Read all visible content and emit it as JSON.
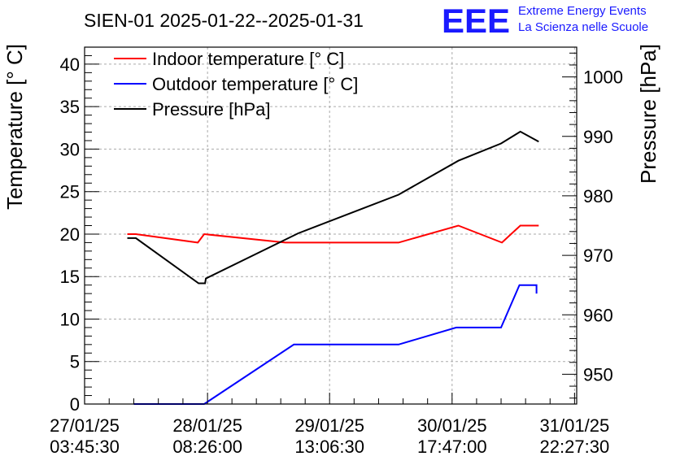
{
  "chart_data": {
    "type": "line",
    "title": "SIEN-01 2025-01-22--2025-01-31",
    "logo": {
      "mark": "EEE",
      "line1": "Extreme Energy Events",
      "line2": "La Scienza nelle Scuole",
      "color": "#1a1aff"
    },
    "y_left": {
      "label": "Temperature [° C]",
      "range": [
        0,
        42
      ],
      "ticks": [
        0,
        5,
        10,
        15,
        20,
        25,
        30,
        35,
        40
      ]
    },
    "y_right": {
      "label": "Pressure [hPa]",
      "range": [
        945,
        1005
      ],
      "ticks": [
        950,
        960,
        970,
        980,
        990,
        1000
      ]
    },
    "x_axis": {
      "unit": "hours from 27/01/25 03:45:30",
      "range": [
        0,
        115.2
      ],
      "ticks": [
        {
          "t": 0,
          "date": "27/01/25",
          "time": "03:45:30"
        },
        {
          "t": 28.78,
          "date": "28/01/25",
          "time": "08:26:00"
        },
        {
          "t": 57.35,
          "date": "29/01/25",
          "time": "13:06:30"
        },
        {
          "t": 86.03,
          "date": "30/01/25",
          "time": "17:47:00"
        },
        {
          "t": 114.7,
          "date": "31/01/25",
          "time": "22:27:30"
        }
      ]
    },
    "legend": {
      "position": "top-left",
      "entries": [
        "Indoor temperature [° C]",
        "Outdoor temperature [° C]",
        "Pressure [hPa]"
      ]
    },
    "grid": true,
    "series": [
      {
        "name": "Indoor temperature [° C]",
        "axis": "left",
        "color": "#ff0000",
        "points": [
          [
            10,
            20
          ],
          [
            12,
            20
          ],
          [
            26.5,
            19
          ],
          [
            28,
            20
          ],
          [
            47,
            19
          ],
          [
            73.5,
            19
          ],
          [
            87.5,
            21
          ],
          [
            97.7,
            19
          ],
          [
            102,
            21
          ],
          [
            106.3,
            21
          ]
        ]
      },
      {
        "name": "Outdoor temperature [° C]",
        "axis": "left",
        "color": "#0000ff",
        "points": [
          [
            11.5,
            0
          ],
          [
            28,
            0
          ],
          [
            49,
            7
          ],
          [
            73.5,
            7
          ],
          [
            87,
            9
          ],
          [
            97.5,
            9
          ],
          [
            101.8,
            14
          ],
          [
            105.8,
            14
          ],
          [
            105.8,
            13
          ]
        ]
      },
      {
        "name": "Pressure [hPa]",
        "axis": "right",
        "color": "#000000",
        "points": [
          [
            10,
            972.9
          ],
          [
            12,
            972.9
          ],
          [
            26.7,
            965.3
          ],
          [
            28.2,
            965.3
          ],
          [
            28.4,
            966.1
          ],
          [
            50,
            973.7
          ],
          [
            73.5,
            980.2
          ],
          [
            87.5,
            985.9
          ],
          [
            97.5,
            988.8
          ],
          [
            102,
            990.8
          ],
          [
            106.3,
            989.1
          ]
        ]
      }
    ]
  }
}
